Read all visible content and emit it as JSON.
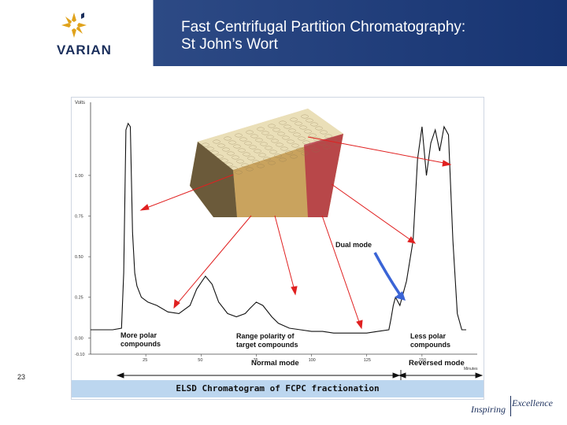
{
  "header": {
    "logo_text": "VARIAN",
    "title_line1": "Fast Centrifugal Partition Chromatography:",
    "title_line2": "St John’s Wort"
  },
  "colors": {
    "title_band": "#233f7d",
    "arrow_red": "#e02020",
    "arrow_blue": "#3a64d6",
    "caption_band": "#bcd6ef",
    "trace": "#111111"
  },
  "chart_data": {
    "type": "line",
    "title": "",
    "ylabel": "Volts",
    "xlabel": "Minutes",
    "y_ticks": [
      "1.00",
      "0.75",
      "0.50",
      "0.25",
      "0.00",
      "-0.10"
    ],
    "x_ticks": [
      "25",
      "50",
      "75",
      "100",
      "125",
      "150"
    ],
    "xlim": [
      0,
      175
    ],
    "ylim": [
      -0.1,
      1.45
    ],
    "series": [
      {
        "x": [
          0,
          5,
          10,
          14,
          15,
          16,
          17,
          18,
          19,
          20,
          21,
          23,
          26,
          30,
          35,
          40,
          45,
          48,
          52,
          55,
          58,
          62,
          66,
          70,
          72,
          75,
          78,
          82,
          85,
          90,
          95,
          100,
          105,
          110,
          120,
          125,
          130,
          135,
          136,
          137,
          138,
          140,
          143,
          146,
          148,
          150,
          152,
          154,
          156,
          158,
          160,
          162,
          164,
          166,
          168,
          170
        ],
        "y": [
          0.05,
          0.05,
          0.05,
          0.06,
          0.4,
          1.28,
          1.32,
          1.3,
          0.65,
          0.4,
          0.32,
          0.25,
          0.22,
          0.2,
          0.16,
          0.15,
          0.2,
          0.3,
          0.38,
          0.33,
          0.22,
          0.15,
          0.13,
          0.15,
          0.18,
          0.22,
          0.2,
          0.13,
          0.09,
          0.06,
          0.05,
          0.04,
          0.04,
          0.03,
          0.03,
          0.03,
          0.04,
          0.05,
          0.12,
          0.2,
          0.25,
          0.2,
          0.35,
          0.6,
          1.1,
          1.3,
          1.0,
          1.2,
          1.28,
          1.15,
          1.3,
          1.25,
          0.6,
          0.15,
          0.05,
          0.05
        ]
      }
    ],
    "annotations": {
      "dual_mode": "Dual mode",
      "more_polar": [
        "More polar",
        "compounds"
      ],
      "range_polarity": [
        "Range polarity of",
        "target compounds"
      ],
      "less_polar": [
        "Less polar",
        "compounds"
      ],
      "normal_mode": "Normal mode",
      "reversed_mode": "Reversed mode"
    },
    "caption": "ELSD Chromatogram of FCPC fractionation"
  },
  "footer": {
    "page_number": "23",
    "tagline_a": "Inspiring",
    "tagline_b": "Excellence"
  }
}
